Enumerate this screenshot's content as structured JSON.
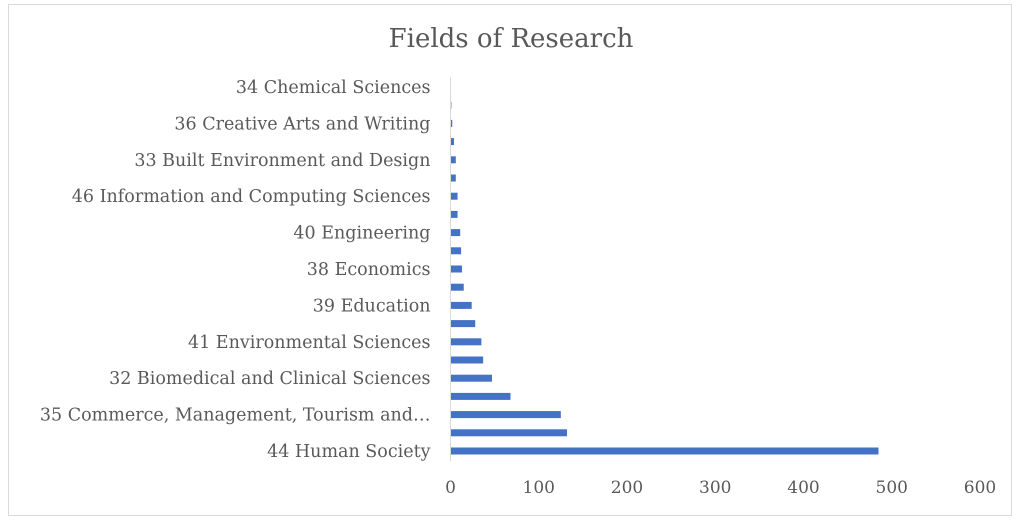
{
  "chart_data": {
    "type": "bar",
    "orientation": "horizontal",
    "title": "Fields of Research",
    "xlabel": "",
    "ylabel": "",
    "xlim": [
      0,
      600
    ],
    "x_ticks": [
      0,
      100,
      200,
      300,
      400,
      500,
      600
    ],
    "grid": false,
    "legend": "none",
    "bar_color": "#4472c4",
    "categories": [
      "44 Human Society",
      "",
      "35 Commerce, Management, Tourism and…",
      "",
      "32 Biomedical and Clinical Sciences",
      "",
      "41 Environmental Sciences",
      "",
      "39 Education",
      "",
      "38 Economics",
      "",
      "40 Engineering",
      "",
      "46 Information and Computing Sciences",
      "",
      "33 Built Environment and Design",
      "",
      "36 Creative Arts and Writing",
      "",
      "34 Chemical Sciences"
    ],
    "values": [
      485,
      132,
      125,
      68,
      47,
      37,
      35,
      28,
      24,
      15,
      13,
      12,
      11,
      8,
      8,
      6,
      6,
      4,
      2,
      1,
      0
    ]
  }
}
